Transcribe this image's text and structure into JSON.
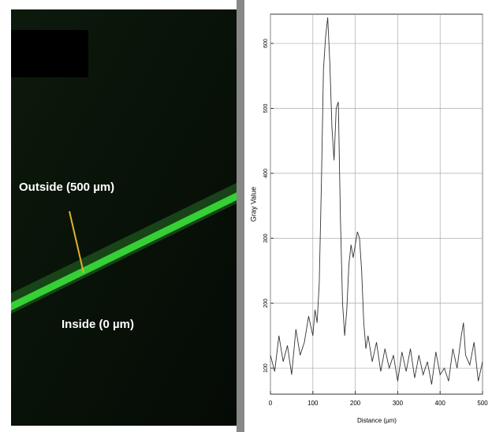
{
  "chart_data": {
    "type": "line",
    "annotations": [
      "Outside (500 µm)",
      "Inside (0 µm)"
    ],
    "x_label": "Distance (µm)",
    "y_label": "Gray Value",
    "x": [
      0,
      10,
      20,
      30,
      40,
      50,
      60,
      70,
      80,
      90,
      100,
      105,
      110,
      115,
      120,
      125,
      130,
      135,
      140,
      145,
      150,
      155,
      160,
      165,
      170,
      175,
      180,
      185,
      190,
      195,
      200,
      205,
      210,
      215,
      220,
      225,
      230,
      240,
      250,
      260,
      270,
      280,
      290,
      300,
      310,
      320,
      330,
      340,
      350,
      360,
      370,
      380,
      390,
      400,
      410,
      420,
      430,
      440,
      450,
      455,
      460,
      470,
      480,
      490,
      500
    ],
    "values": [
      120,
      95,
      150,
      110,
      135,
      90,
      160,
      120,
      140,
      180,
      150,
      190,
      170,
      230,
      380,
      560,
      610,
      640,
      570,
      470,
      420,
      500,
      510,
      330,
      200,
      150,
      190,
      260,
      290,
      270,
      290,
      310,
      300,
      250,
      170,
      130,
      150,
      110,
      140,
      95,
      130,
      100,
      120,
      80,
      125,
      95,
      130,
      85,
      120,
      90,
      110,
      75,
      125,
      90,
      100,
      80,
      130,
      100,
      150,
      170,
      120,
      105,
      140,
      80,
      110
    ],
    "color": "#333333",
    "xlim": [
      0,
      500
    ],
    "xticks": [
      0,
      100,
      200,
      300,
      400,
      500
    ],
    "ylim": [
      60,
      645
    ],
    "yticks": [
      100,
      200,
      300,
      400,
      500,
      600
    ],
    "grid": true
  }
}
